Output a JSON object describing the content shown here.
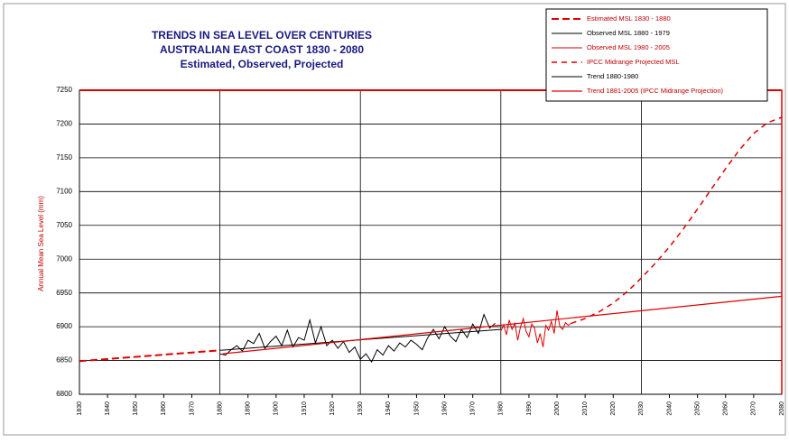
{
  "chart_data": {
    "type": "line",
    "title": [
      "TRENDS IN SEA LEVEL OVER CENTURIES",
      "AUSTRALIAN EAST COAST 1830 - 2080",
      "Estimated, Observed, Projected"
    ],
    "y_label": "Annual Mean Sea Level (mm)",
    "xlim": [
      1830,
      2080
    ],
    "xticks": [
      1830,
      1840,
      1850,
      1860,
      1870,
      1880,
      1890,
      1900,
      1910,
      1920,
      1930,
      1940,
      1950,
      1960,
      1970,
      1980,
      1990,
      2000,
      2010,
      2020,
      2030,
      2040,
      2050,
      2060,
      2070,
      2080
    ],
    "ylim": [
      6800,
      7250
    ],
    "yticks": [
      6800,
      6850,
      6900,
      6950,
      7000,
      7050,
      7100,
      7150,
      7200,
      7250
    ],
    "grid": true,
    "legend": "upper right",
    "series": [
      {
        "name": "Estimated MSL 1830 - 1880",
        "color": "#e00000",
        "dash": "8 4",
        "width": 2,
        "x": [
          1830,
          1880
        ],
        "values": [
          6849,
          6865
        ]
      },
      {
        "name": "Observed MSL 1880 - 1979",
        "color": "#000000",
        "dash": "",
        "width": 1,
        "x": [
          1880,
          1882,
          1884,
          1886,
          1888,
          1890,
          1892,
          1894,
          1896,
          1898,
          1900,
          1902,
          1904,
          1906,
          1908,
          1910,
          1912,
          1914,
          1916,
          1918,
          1920,
          1922,
          1924,
          1926,
          1928,
          1930,
          1932,
          1934,
          1936,
          1938,
          1940,
          1942,
          1944,
          1946,
          1948,
          1950,
          1952,
          1954,
          1956,
          1958,
          1960,
          1962,
          1964,
          1966,
          1968,
          1970,
          1972,
          1974,
          1976,
          1978
        ],
        "values": [
          6860,
          6858,
          6866,
          6872,
          6864,
          6880,
          6875,
          6890,
          6868,
          6878,
          6886,
          6872,
          6895,
          6870,
          6884,
          6880,
          6910,
          6876,
          6900,
          6872,
          6880,
          6868,
          6878,
          6862,
          6870,
          6852,
          6860,
          6848,
          6866,
          6858,
          6872,
          6864,
          6876,
          6870,
          6880,
          6874,
          6866,
          6884,
          6896,
          6882,
          6900,
          6886,
          6878,
          6896,
          6884,
          6904,
          6890,
          6918,
          6898,
          6905
        ]
      },
      {
        "name": "Observed MSL 1980 - 2005",
        "color": "#e00000",
        "dash": "",
        "width": 1,
        "x": [
          1980,
          1981,
          1982,
          1983,
          1984,
          1985,
          1986,
          1987,
          1988,
          1989,
          1990,
          1991,
          1992,
          1993,
          1994,
          1995,
          1996,
          1997,
          1998,
          1999,
          2000,
          2001,
          2002,
          2003,
          2004,
          2005
        ],
        "values": [
          6894,
          6902,
          6888,
          6910,
          6896,
          6905,
          6880,
          6900,
          6912,
          6893,
          6885,
          6904,
          6898,
          6876,
          6890,
          6870,
          6902,
          6895,
          6908,
          6890,
          6924,
          6900,
          6896,
          6906,
          6902,
          6905
        ]
      },
      {
        "name": "IPCC Midrange Projected MSL",
        "color": "#e00000",
        "dash": "6 5",
        "width": 1.5,
        "x": [
          2005,
          2010,
          2015,
          2020,
          2025,
          2030,
          2035,
          2040,
          2045,
          2050,
          2055,
          2060,
          2065,
          2070,
          2075,
          2080
        ],
        "values": [
          6905,
          6912,
          6922,
          6935,
          6952,
          6972,
          6994,
          7018,
          7045,
          7074,
          7104,
          7134,
          7162,
          7186,
          7202,
          7210
        ]
      },
      {
        "name": "Trend 1880-1980",
        "color": "#000000",
        "dash": "",
        "width": 1,
        "x": [
          1880,
          1980
        ],
        "values": [
          6865,
          6896
        ]
      },
      {
        "name": "Trend 1881-2005 (IPCC Midrange Projection)",
        "color": "#e00000",
        "dash": "",
        "width": 1.2,
        "x": [
          1881,
          2080
        ],
        "values": [
          6860,
          6945
        ]
      }
    ]
  }
}
